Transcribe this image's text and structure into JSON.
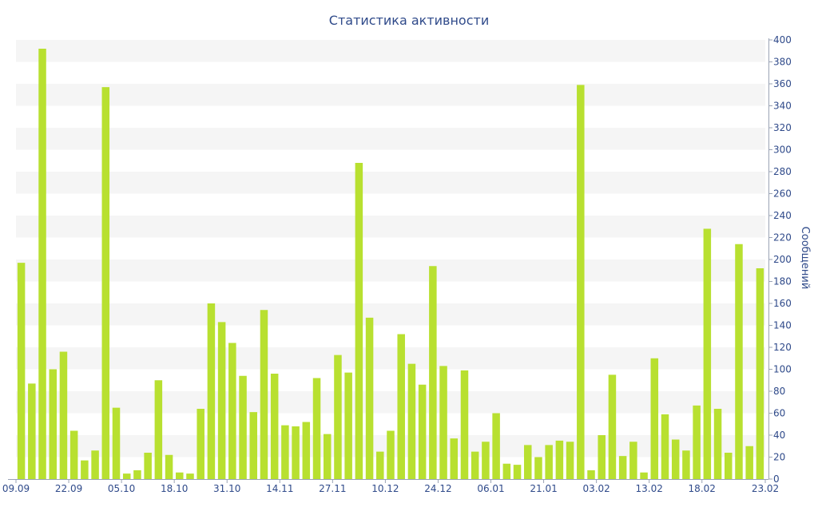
{
  "chart_data": {
    "type": "bar",
    "title": "Статистика активности",
    "ylabel": "Сообщений",
    "xlabel": "",
    "ylim": [
      0,
      400
    ],
    "y_ticks": [
      0,
      20,
      40,
      60,
      80,
      100,
      120,
      140,
      160,
      180,
      200,
      220,
      240,
      260,
      280,
      300,
      320,
      340,
      360,
      380,
      400
    ],
    "y_axis_position": "right",
    "grid": "alternating horizontal bands",
    "bar_color": "#b8e030",
    "band_color": "#f5f5f5",
    "text_color": "#2f4a8a",
    "x_tick_labels": [
      {
        "index": 0,
        "label": "09.09"
      },
      {
        "index": 5,
        "label": "22.09"
      },
      {
        "index": 10,
        "label": "05.10"
      },
      {
        "index": 15,
        "label": "18.10"
      },
      {
        "index": 20,
        "label": "31.10"
      },
      {
        "index": 25,
        "label": "14.11"
      },
      {
        "index": 30,
        "label": "27.11"
      },
      {
        "index": 35,
        "label": "10.12"
      },
      {
        "index": 40,
        "label": "24.12"
      },
      {
        "index": 45,
        "label": "06.01"
      },
      {
        "index": 50,
        "label": "21.01"
      },
      {
        "index": 55,
        "label": "03.02"
      },
      {
        "index": 60,
        "label": "13.02"
      },
      {
        "index": 65,
        "label": "18.02"
      },
      {
        "index": 70,
        "label": "23.02"
      }
    ],
    "values": [
      197,
      87,
      392,
      100,
      116,
      44,
      17,
      26,
      357,
      65,
      5,
      8,
      24,
      90,
      22,
      6,
      5,
      64,
      160,
      143,
      124,
      94,
      61,
      154,
      96,
      49,
      48,
      52,
      92,
      41,
      113,
      97,
      288,
      147,
      25,
      44,
      132,
      105,
      86,
      194,
      103,
      37,
      99,
      25,
      34,
      60,
      14,
      13,
      31,
      20,
      31,
      35,
      34,
      359,
      8,
      40,
      95,
      21,
      34,
      6,
      110,
      59,
      36,
      26,
      67,
      228,
      64,
      24,
      214,
      30,
      192
    ]
  }
}
